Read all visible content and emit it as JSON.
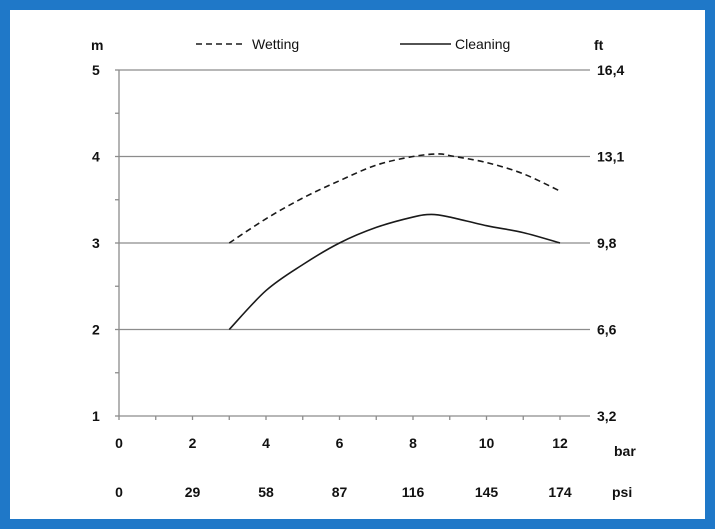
{
  "chart_data": {
    "type": "line",
    "title": "",
    "x": [
      3,
      4,
      5,
      6,
      7,
      8,
      8.5,
      9,
      10,
      11,
      12
    ],
    "xlim": [
      0,
      12
    ],
    "ylim": [
      1,
      5
    ],
    "x_ticks_bar": [
      "0",
      "2",
      "4",
      "6",
      "8",
      "10",
      "12"
    ],
    "x_ticks_psi": [
      "0",
      "29",
      "58",
      "87",
      "116",
      "145",
      "174"
    ],
    "x_unit_bar": "bar",
    "x_unit_psi": "psi",
    "y_ticks_m": [
      "1",
      "2",
      "3",
      "4",
      "5"
    ],
    "y_ticks_ft": [
      "3,2",
      "6,6",
      "9,8",
      "13,1",
      "16,4"
    ],
    "y_unit_left": "m",
    "y_unit_right": "ft",
    "grid": "horizontal",
    "legend_position": "top",
    "series": [
      {
        "name": "Wetting",
        "style": "dashed",
        "x": [
          3,
          4,
          5,
          6,
          7,
          8,
          8.7,
          9,
          10,
          11,
          12
        ],
        "values": [
          3.0,
          3.28,
          3.52,
          3.72,
          3.9,
          4.0,
          4.03,
          4.01,
          3.93,
          3.8,
          3.6
        ]
      },
      {
        "name": "Cleaning",
        "style": "solid",
        "x": [
          3,
          4,
          5,
          6,
          7,
          8,
          8.5,
          9,
          10,
          11,
          12
        ],
        "values": [
          2.0,
          2.45,
          2.75,
          3.0,
          3.18,
          3.3,
          3.33,
          3.3,
          3.2,
          3.12,
          3.0
        ]
      }
    ]
  },
  "colors": {
    "border": "#1f78c8",
    "grid": "#8c8c8c",
    "line": "#1a1a1a"
  }
}
